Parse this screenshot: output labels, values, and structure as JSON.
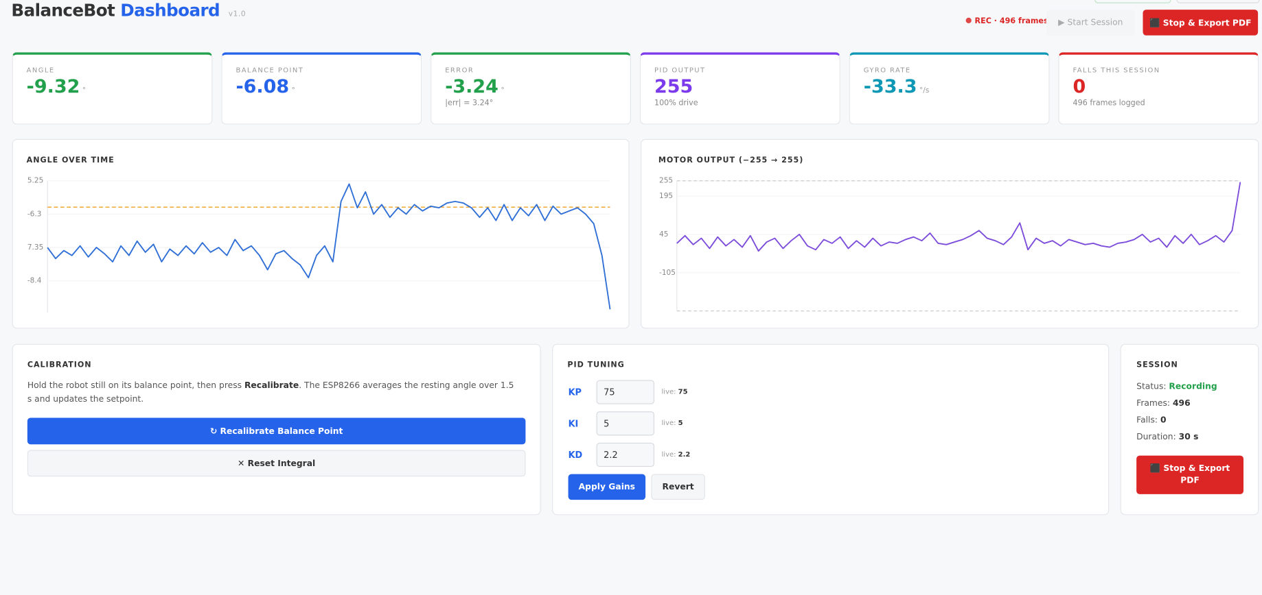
{
  "header": {
    "title": "BalanceBot",
    "title_accent": "Dashboard",
    "version": "v1.0"
  },
  "toolbar": {
    "rec_status": "REC · 496 frames",
    "start_button": "▶ Start Session",
    "stop_button": "⬛ Stop & Export PDF"
  },
  "stats": [
    {
      "label": "ANGLE",
      "value": "-9.32",
      "unit": "°",
      "color": "#22a04b"
    },
    {
      "label": "BALANCE POINT",
      "value": "-6.08",
      "unit": "°",
      "color": "#2563eb"
    },
    {
      "label": "ERROR",
      "value": "-3.24",
      "unit": "°",
      "sub": "|err| = 3.24°",
      "color": "#22a04b"
    },
    {
      "label": "PID OUTPUT",
      "value": "255",
      "sub": "100% drive",
      "color": "#7c3aed"
    },
    {
      "label": "GYRO RATE",
      "value": "-33.3",
      "unit": "°/s",
      "color": "#0e98b5"
    },
    {
      "label": "FALLS THIS SESSION",
      "value": "0",
      "sub": "496 frames logged",
      "color": "#dc2626"
    }
  ],
  "chart_data": [
    {
      "type": "line",
      "title": "ANGLE OVER TIME",
      "color": "#2f6fd6",
      "values": [
        -7.35,
        -7.7,
        -7.45,
        -7.6,
        -7.3,
        -7.65,
        -7.35,
        -7.55,
        -7.8,
        -7.3,
        -7.6,
        -7.15,
        -7.5,
        -7.25,
        -7.8,
        -7.4,
        -7.6,
        -7.3,
        -7.55,
        -7.2,
        -7.5,
        -7.35,
        -7.6,
        -7.1,
        -7.45,
        -7.3,
        -7.6,
        -8.05,
        -7.55,
        -7.45,
        -7.7,
        -7.9,
        -8.3,
        -7.6,
        -7.3,
        -7.8,
        -5.9,
        -5.35,
        -6.1,
        -5.6,
        -6.3,
        -6.0,
        -6.4,
        -6.1,
        -6.3,
        -6.0,
        -6.2,
        -6.05,
        -6.1,
        -5.95,
        -5.9,
        -5.95,
        -6.1,
        -6.4,
        -6.1,
        -6.5,
        -6.0,
        -6.5,
        -6.1,
        -6.35,
        -6.0,
        -6.5,
        -6.05,
        -6.3,
        -6.2,
        -6.1,
        -6.3,
        -6.6,
        -7.6,
        -9.3
      ],
      "ylim": [
        -9.4,
        -5.25
      ],
      "yticks": [
        {
          "value": -5.25,
          "label": "5.25"
        },
        -6.3,
        {
          "value": -7.35,
          "label": "7.35"
        },
        -8.4
      ],
      "setpoint": -6.08,
      "setpoint_color": "#f0a020"
    },
    {
      "type": "line",
      "title": "MOTOR OUTPUT (−255 → 255)",
      "color": "#7c4ddb",
      "values": [
        10,
        40,
        5,
        30,
        -10,
        35,
        0,
        25,
        -5,
        40,
        -20,
        15,
        30,
        -10,
        20,
        45,
        0,
        -15,
        25,
        10,
        35,
        -10,
        20,
        -5,
        30,
        0,
        15,
        10,
        25,
        35,
        20,
        50,
        10,
        5,
        15,
        25,
        40,
        60,
        30,
        20,
        5,
        35,
        90,
        -15,
        30,
        10,
        20,
        0,
        25,
        15,
        5,
        10,
        0,
        -5,
        10,
        15,
        25,
        45,
        15,
        30,
        -5,
        40,
        10,
        45,
        5,
        20,
        40,
        15,
        60,
        250
      ],
      "ylim": [
        -255,
        255
      ],
      "yticks": [
        255,
        195,
        45,
        -105
      ],
      "bounds_dashed": true
    }
  ],
  "calibration": {
    "title": "CALIBRATION",
    "text_before": "Hold the robot still on its balance point, then press ",
    "emphasis": "Recalibrate",
    "text_after": ". The ESP8266 averages the resting angle over 1.5 s and updates the setpoint.",
    "recalibrate_button": "↻ Recalibrate Balance Point",
    "reset_button": "✕ Reset Integral"
  },
  "pid_tuning": {
    "title": "PID TUNING",
    "gains": [
      {
        "name": "KP",
        "value": "75",
        "live_label": "live:",
        "live_value": "75"
      },
      {
        "name": "KI",
        "value": "5",
        "live_label": "live:",
        "live_value": "5"
      },
      {
        "name": "KD",
        "value": "2.2",
        "live_label": "live:",
        "live_value": "2.2"
      }
    ],
    "apply_button": "Apply Gains",
    "revert_button": "Revert"
  },
  "session": {
    "title": "SESSION",
    "rows": [
      {
        "label": "Status:",
        "value": "Recording"
      },
      {
        "label": "Frames:",
        "value": "496"
      },
      {
        "label": "Falls:",
        "value": "0"
      },
      {
        "label": "Duration:",
        "value": "30 s"
      }
    ],
    "button": "⬛ Stop & Export PDF"
  }
}
